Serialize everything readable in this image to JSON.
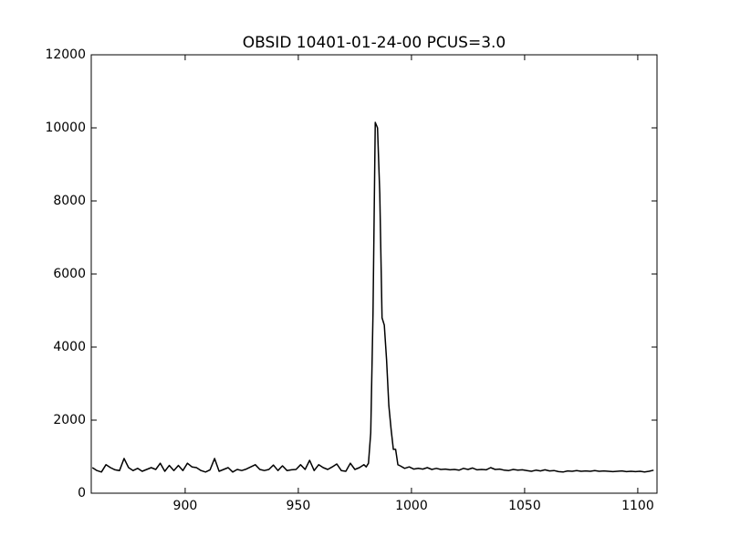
{
  "chart_data": {
    "type": "line",
    "title": "OBSID 10401-01-24-00  PCUS=3.0",
    "x": [
      859,
      861,
      863,
      865,
      867,
      869,
      871,
      873,
      875,
      877,
      879,
      881,
      883,
      885,
      887,
      889,
      891,
      893,
      895,
      897,
      899,
      901,
      903,
      905,
      907,
      909,
      911,
      913,
      915,
      917,
      919,
      921,
      923,
      925,
      927,
      929,
      931,
      933,
      935,
      937,
      939,
      941,
      943,
      945,
      947,
      949,
      951,
      953,
      955,
      957,
      959,
      961,
      963,
      965,
      967,
      969,
      971,
      973,
      975,
      977,
      979,
      980,
      981,
      982,
      983,
      984,
      985,
      986,
      987,
      988,
      989,
      990,
      991,
      992,
      993,
      994,
      995,
      997,
      999,
      1001,
      1003,
      1005,
      1007,
      1009,
      1011,
      1013,
      1015,
      1017,
      1019,
      1021,
      1023,
      1025,
      1027,
      1029,
      1031,
      1033,
      1035,
      1037,
      1039,
      1041,
      1043,
      1045,
      1047,
      1049,
      1051,
      1053,
      1055,
      1057,
      1059,
      1061,
      1063,
      1065,
      1067,
      1069,
      1071,
      1073,
      1075,
      1077,
      1079,
      1081,
      1083,
      1085,
      1087,
      1089,
      1091,
      1093,
      1095,
      1097,
      1099,
      1101,
      1103,
      1105,
      1107
    ],
    "values": [
      700,
      620,
      580,
      780,
      700,
      640,
      620,
      950,
      700,
      620,
      680,
      600,
      650,
      700,
      650,
      820,
      600,
      760,
      620,
      760,
      620,
      820,
      720,
      700,
      620,
      580,
      640,
      950,
      600,
      650,
      700,
      580,
      650,
      620,
      660,
      720,
      780,
      650,
      620,
      650,
      770,
      620,
      750,
      620,
      640,
      650,
      780,
      650,
      900,
      620,
      780,
      700,
      650,
      720,
      800,
      620,
      600,
      820,
      650,
      700,
      780,
      720,
      820,
      1650,
      4900,
      10150,
      10000,
      8200,
      4800,
      4600,
      3650,
      2400,
      1750,
      1200,
      1200,
      780,
      750,
      680,
      720,
      660,
      680,
      660,
      700,
      650,
      680,
      650,
      660,
      640,
      650,
      630,
      680,
      650,
      690,
      640,
      650,
      640,
      700,
      650,
      660,
      630,
      620,
      650,
      630,
      640,
      620,
      600,
      630,
      610,
      640,
      610,
      620,
      590,
      580,
      610,
      600,
      620,
      600,
      610,
      600,
      620,
      600,
      610,
      600,
      590,
      600,
      610,
      590,
      600,
      590,
      600,
      580,
      600,
      630
    ],
    "color": "#000000",
    "xlim": [
      858.5,
      1108.5
    ],
    "ylim": [
      0,
      12000
    ],
    "xticks": [
      900,
      950,
      1000,
      1050,
      1100
    ],
    "yticks": [
      0,
      2000,
      4000,
      6000,
      8000,
      10000,
      12000
    ]
  }
}
